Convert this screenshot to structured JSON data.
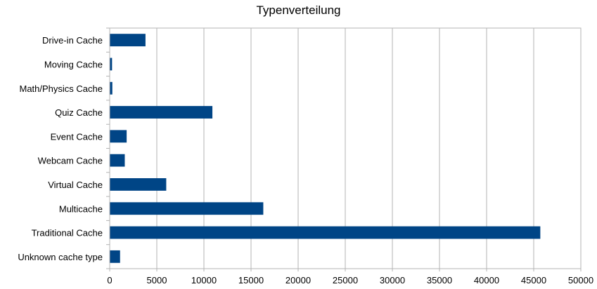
{
  "chart_data": {
    "type": "bar",
    "orientation": "horizontal",
    "title": "Typenverteilung",
    "categories": [
      "Drive-in Cache",
      "Moving Cache",
      "Math/Physics Cache",
      "Quiz Cache",
      "Event Cache",
      "Webcam Cache",
      "Virtual Cache",
      "Multicache",
      "Traditional Cache",
      "Unknown cache type"
    ],
    "values": [
      3800,
      250,
      280,
      10900,
      1800,
      1600,
      6000,
      16300,
      45700,
      1100
    ],
    "xlim": [
      0,
      50000
    ],
    "xticks": [
      0,
      5000,
      10000,
      15000,
      20000,
      25000,
      30000,
      35000,
      40000,
      45000,
      50000
    ],
    "grid": true,
    "bar_color": "#004586",
    "legend": "none"
  }
}
